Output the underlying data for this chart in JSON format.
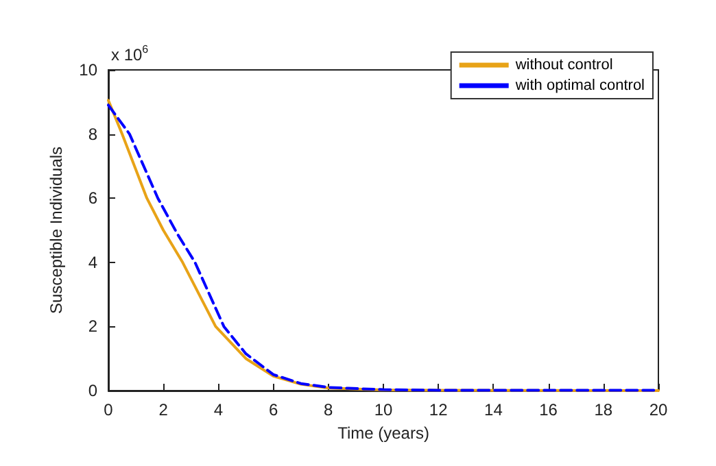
{
  "chart_data": {
    "type": "line",
    "xlabel": "Time (years)",
    "ylabel": "Susceptible Individuals",
    "annotations": [
      "x 10$^{6}$"
    ],
    "xlim": [
      0,
      20
    ],
    "xticks": [
      0,
      2,
      4,
      6,
      8,
      10,
      12,
      14,
      16,
      18,
      20
    ],
    "ylim": [
      0,
      10
    ],
    "yticks": [
      0,
      2,
      4,
      6,
      8,
      10
    ],
    "grid": false,
    "legend": "top right",
    "marker": "none",
    "series": [
      {
        "name": "without control",
        "color": "#e8a317",
        "line_style": "solid",
        "x": [
          0,
          0.5,
          1.4,
          2,
          2.7,
          3.9,
          5,
          6,
          7,
          8,
          10,
          12,
          20
        ],
        "values": [
          9.05,
          8,
          6,
          5,
          4,
          2,
          1,
          0.45,
          0.2,
          0.08,
          0.02,
          0.01,
          0
        ]
      },
      {
        "name": "with optimal control",
        "color": "#0000ff",
        "line_style": "dashed",
        "x": [
          0,
          0.77,
          1.8,
          2.5,
          3.15,
          4.2,
          5,
          6,
          7,
          8,
          10,
          12,
          20
        ],
        "values": [
          8.9,
          8,
          6,
          4.9,
          4,
          2,
          1.15,
          0.5,
          0.22,
          0.1,
          0.03,
          0.01,
          0.01
        ]
      }
    ]
  }
}
